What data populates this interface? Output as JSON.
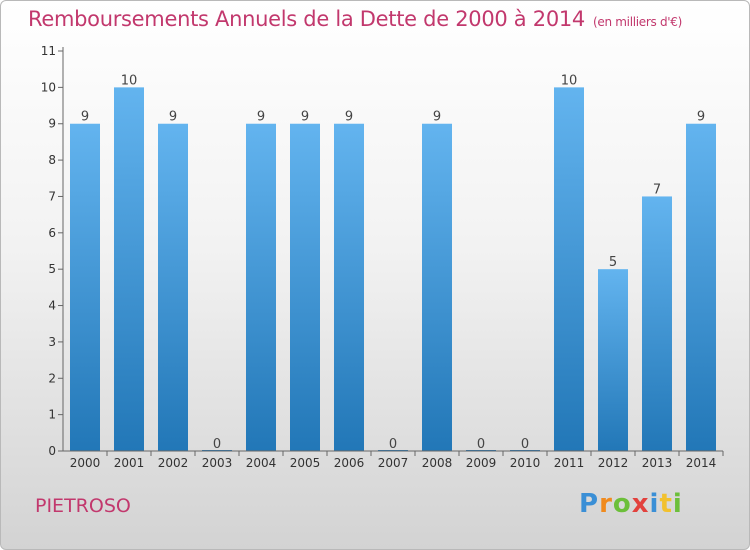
{
  "header": {
    "title": "Remboursements Annuels de la Dette de 2000 à 2014",
    "unit": "(en milliers d'€)"
  },
  "footer": {
    "commune": "PIETROSO",
    "logo_letters": [
      "P",
      "r",
      "o",
      "x",
      "i",
      "t",
      "i"
    ]
  },
  "colors": {
    "title": "#c2386d",
    "bar_top": "#63b4ef",
    "bar_bottom": "#2277b7"
  },
  "chart_data": {
    "type": "bar",
    "title": "Remboursements Annuels de la Dette de 2000 à 2014",
    "categories": [
      "2000",
      "2001",
      "2002",
      "2003",
      "2004",
      "2005",
      "2006",
      "2007",
      "2008",
      "2009",
      "2010",
      "2011",
      "2012",
      "2013",
      "2014"
    ],
    "values": [
      9,
      10,
      9,
      0,
      9,
      9,
      9,
      0,
      9,
      0,
      0,
      10,
      5,
      7,
      9
    ],
    "ylim": [
      0,
      11
    ],
    "yticks": [
      0,
      1,
      2,
      3,
      4,
      5,
      6,
      7,
      8,
      9,
      10,
      11
    ],
    "xlabel": "",
    "ylabel": "",
    "grid": false,
    "data_labels": true
  }
}
